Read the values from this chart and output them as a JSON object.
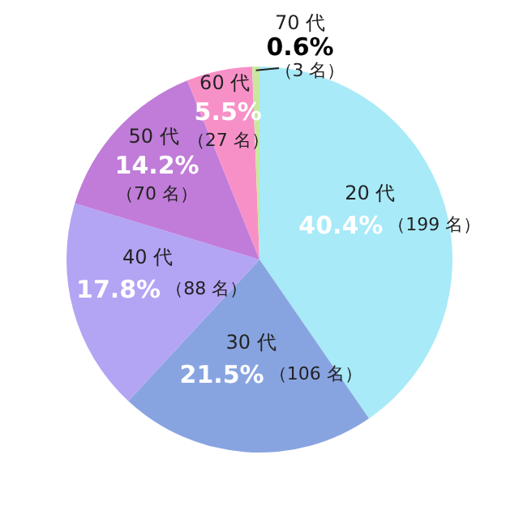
{
  "chart_data": {
    "type": "pie",
    "categories": [
      "20 代",
      "30 代",
      "40 代",
      "50 代",
      "60 代",
      "70 代"
    ],
    "values": [
      40.4,
      21.5,
      17.8,
      14.2,
      5.5,
      0.6
    ],
    "colors": [
      "#a8eaf8",
      "#88a4e0",
      "#b4a4f4",
      "#c07cd8",
      "#f890c8",
      "#c8e8a0"
    ],
    "value_labels": [
      "40.4%",
      "21.5%",
      "17.8%",
      "14.2%",
      "5.5%",
      "0.6%"
    ],
    "annotations": [
      {
        "text": "（199 名）",
        "x": "20 代"
      },
      {
        "text": "（106 名）",
        "x": "30 代"
      },
      {
        "text": "（88 名）",
        "x": "40 代"
      },
      {
        "text": "（70 名）",
        "x": "50 代"
      },
      {
        "text": "（27 名）",
        "x": "60 代"
      },
      {
        "text": "（3 名）",
        "x": "70 代"
      }
    ],
    "data_labels": true
  }
}
